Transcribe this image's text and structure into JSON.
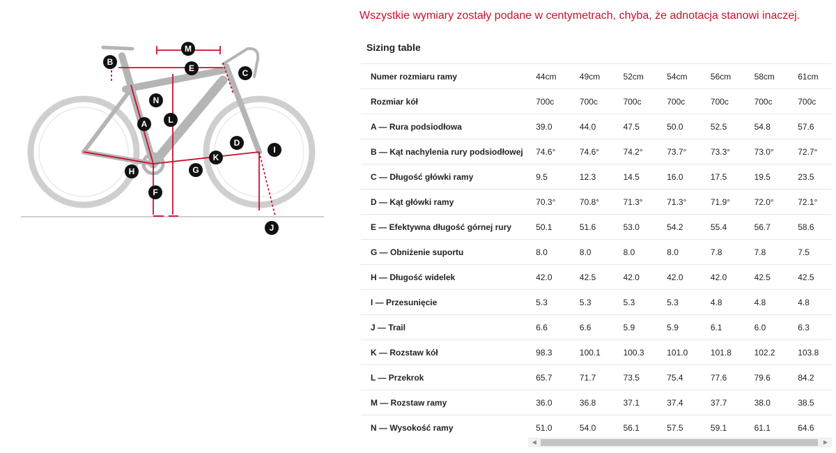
{
  "notice": "Wszystkie wymiary zostały podane w centymetrach, chyba, że adnotacja stanowi inaczej.",
  "table_title": "Sizing table",
  "diagram": {
    "labels": [
      "M",
      "B",
      "E",
      "C",
      "N",
      "L",
      "A",
      "D",
      "I",
      "K",
      "H",
      "G",
      "F",
      "J"
    ],
    "accent_color": "#c8102e"
  },
  "rows": [
    {
      "label": "Numer rozmiaru ramy",
      "values": [
        "44cm",
        "49cm",
        "52cm",
        "54cm",
        "56cm",
        "58cm",
        "61cm"
      ]
    },
    {
      "label": "Rozmiar kół",
      "values": [
        "700c",
        "700c",
        "700c",
        "700c",
        "700c",
        "700c",
        "700c"
      ]
    },
    {
      "label": "A — Rura podsiodłowa",
      "values": [
        "39.0",
        "44.0",
        "47.5",
        "50.0",
        "52.5",
        "54.8",
        "57.6"
      ]
    },
    {
      "label": "B — Kąt nachylenia rury podsiodłowej",
      "values": [
        "74.6°",
        "74.6°",
        "74.2°",
        "73.7°",
        "73.3°",
        "73.0°",
        "72.7°"
      ]
    },
    {
      "label": "C — Długość główki ramy",
      "values": [
        "9.5",
        "12.3",
        "14.5",
        "16.0",
        "17.5",
        "19.5",
        "23.5"
      ]
    },
    {
      "label": "D — Kąt główki ramy",
      "values": [
        "70.3°",
        "70.8°",
        "71.3°",
        "71.3°",
        "71.9°",
        "72.0°",
        "72.1°"
      ]
    },
    {
      "label": "E — Efektywna długość górnej rury",
      "values": [
        "50.1",
        "51.6",
        "53.0",
        "54.2",
        "55.4",
        "56.7",
        "58.6"
      ]
    },
    {
      "label": "G — Obniżenie suportu",
      "values": [
        "8.0",
        "8.0",
        "8.0",
        "8.0",
        "7.8",
        "7.8",
        "7.5"
      ]
    },
    {
      "label": "H — Długość widelek",
      "values": [
        "42.0",
        "42.5",
        "42.0",
        "42.0",
        "42.0",
        "42.5",
        "42.5"
      ]
    },
    {
      "label": "I — Przesunięcie",
      "values": [
        "5.3",
        "5.3",
        "5.3",
        "5.3",
        "4.8",
        "4.8",
        "4.8"
      ]
    },
    {
      "label": "J — Trail",
      "values": [
        "6.6",
        "6.6",
        "5.9",
        "5.9",
        "6.1",
        "6.0",
        "6.3"
      ]
    },
    {
      "label": "K — Rozstaw kół",
      "values": [
        "98.3",
        "100.1",
        "100.3",
        "101.0",
        "101.8",
        "102.2",
        "103.8"
      ]
    },
    {
      "label": "L — Przekrok",
      "values": [
        "65.7",
        "71.7",
        "73.5",
        "75.4",
        "77.6",
        "79.6",
        "84.2"
      ]
    },
    {
      "label": "M — Rozstaw ramy",
      "values": [
        "36.0",
        "36.8",
        "37.1",
        "37.4",
        "37.7",
        "38.0",
        "38.5"
      ]
    },
    {
      "label": "N — Wysokość ramy",
      "values": [
        "51.0",
        "54.0",
        "56.1",
        "57.5",
        "59.1",
        "61.1",
        "64.6"
      ]
    }
  ],
  "scrollbar": {
    "left_icon": "chevron-left-icon",
    "right_icon": "chevron-right-icon",
    "left_glyph": "◀",
    "right_glyph": "▶"
  }
}
